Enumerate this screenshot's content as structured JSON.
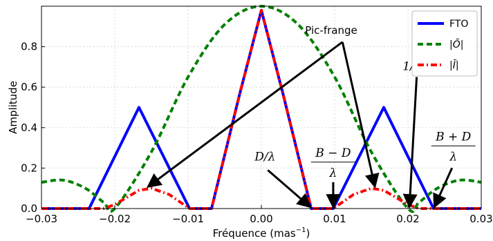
{
  "chart_data": {
    "type": "line",
    "xlabel": "Fréquence (mas",
    "xlabel_exponent": "−1",
    "xlabel_close": ")",
    "ylabel": "Amplitude",
    "xlim": [
      -0.03,
      0.03
    ],
    "ylim": [
      0.0,
      1.0
    ],
    "xticks": [
      -0.03,
      -0.02,
      -0.01,
      0.0,
      0.01,
      0.02,
      0.03
    ],
    "xtick_labels": [
      "−0.03",
      "−0.02",
      "−0.01",
      "0.00",
      "0.01",
      "0.02",
      "0.03"
    ],
    "yticks": [
      0.0,
      0.2,
      0.4,
      0.6,
      0.8
    ],
    "ytick_labels": [
      "0.0",
      "0.2",
      "0.4",
      "0.6",
      "0.8"
    ],
    "grid": true,
    "legend_position": "top-right",
    "series": [
      {
        "name": "FTO",
        "color": "#0000ff",
        "style": "solid",
        "x": [
          -0.03,
          -0.0235,
          -0.0167,
          -0.0098,
          -0.0068,
          -0.003,
          0.0,
          0.003,
          0.0068,
          0.0098,
          0.0167,
          0.0235,
          0.03
        ],
        "y": [
          0.0,
          0.0,
          0.5,
          0.0,
          0.0,
          0.56,
          0.98,
          0.56,
          0.0,
          0.0,
          0.5,
          0.0,
          0.0
        ]
      },
      {
        "name": "|Õ|",
        "color": "#008000",
        "style": "dashed",
        "x": [
          -0.03,
          -0.027,
          -0.024,
          -0.0215,
          -0.02,
          -0.015,
          -0.01,
          -0.005,
          0.0,
          0.005,
          0.01,
          0.015,
          0.02,
          0.0215,
          0.024,
          0.027,
          0.03
        ],
        "y": [
          0.13,
          0.14,
          0.1,
          0.03,
          0.0,
          0.28,
          0.65,
          0.91,
          1.0,
          0.91,
          0.65,
          0.28,
          0.0,
          0.03,
          0.1,
          0.14,
          0.13
        ],
        "smooth": true
      },
      {
        "name": "|Ĩ|",
        "color": "#ff0000",
        "style": "dashdot",
        "x": [
          -0.03,
          -0.0215,
          -0.02,
          -0.0167,
          -0.015,
          -0.0126,
          -0.0098,
          -0.0068,
          -0.003,
          0.0,
          0.003,
          0.0068,
          0.0098,
          0.0126,
          0.015,
          0.0167,
          0.02,
          0.0215,
          0.03
        ],
        "y": [
          0.0,
          0.0,
          0.02,
          0.09,
          0.1,
          0.07,
          0.0,
          0.0,
          0.56,
          0.98,
          0.56,
          0.0,
          0.0,
          0.07,
          0.1,
          0.09,
          0.02,
          0.0,
          0.0
        ]
      }
    ],
    "annotations": {
      "pic_frange": {
        "text": "Pic-frange",
        "point": [
          0.0105,
          0.83
        ],
        "targets": [
          [
            -0.0155,
            0.1
          ],
          [
            0.0155,
            0.1
          ]
        ]
      },
      "d_lambda": {
        "text": "D/λ",
        "point": [
          0.0005,
          0.19
        ],
        "target": [
          0.0068,
          0.0
        ]
      },
      "b_minus_d": {
        "numerator": "B − D",
        "denominator": "λ",
        "point": [
          0.0098,
          0.11
        ],
        "target": [
          0.0098,
          0.0
        ]
      },
      "inv_theta": {
        "text": "1/θ",
        "point": [
          0.021,
          0.65
        ],
        "target": [
          0.0202,
          0.0
        ]
      },
      "b_plus_d": {
        "numerator": "B + D",
        "denominator": "λ",
        "point": [
          0.0262,
          0.18
        ],
        "target": [
          0.0235,
          0.0
        ]
      }
    }
  }
}
